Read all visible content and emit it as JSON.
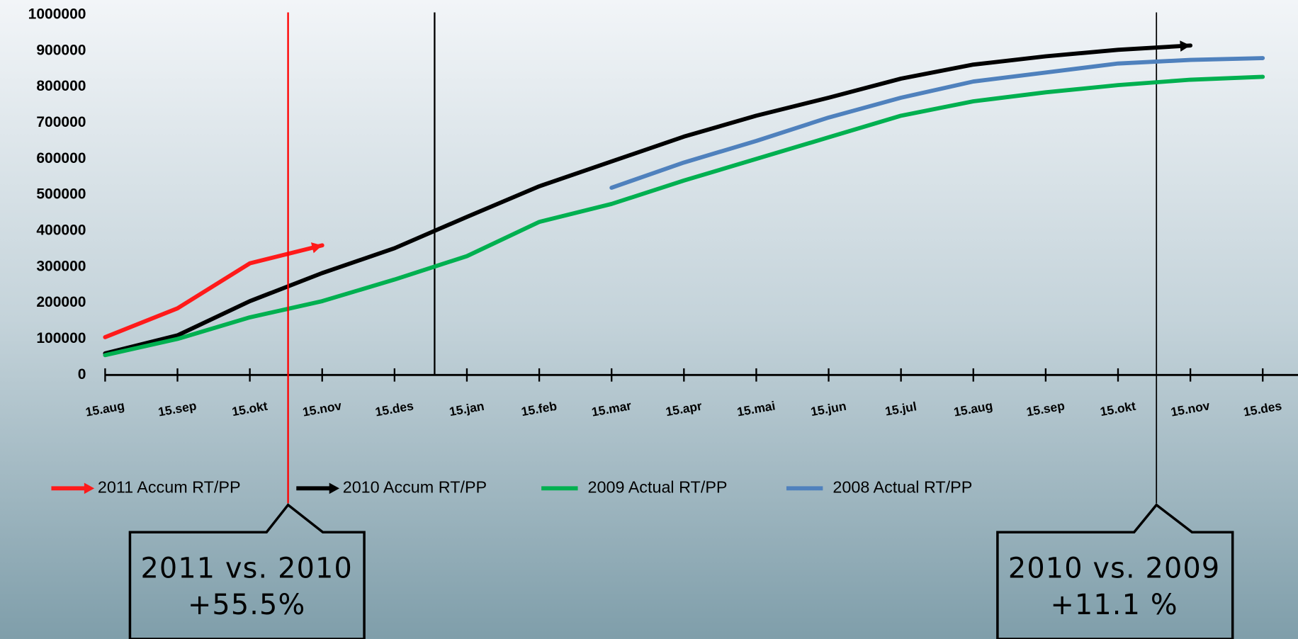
{
  "chart_data": {
    "type": "line",
    "categories": [
      "15.aug",
      "15.sep",
      "15.okt",
      "15.nov",
      "15.des",
      "15.jan",
      "15.feb",
      "15.mar",
      "15.apr",
      "15.mai",
      "15.jun",
      "15.jul",
      "15.aug",
      "15.sep",
      "15.okt",
      "15.nov",
      "15.des"
    ],
    "series": [
      {
        "name": "2011 Accum RT/PP",
        "color": "#ff1a1a",
        "values": [
          105000,
          185000,
          310000,
          360000,
          null,
          null,
          null,
          null,
          null,
          null,
          null,
          null,
          null,
          null,
          null,
          null,
          null
        ]
      },
      {
        "name": "2010 Accum RT/PP",
        "color": "#000000",
        "values": [
          60000,
          110000,
          205000,
          283000,
          352000,
          439000,
          524000,
          593000,
          662000,
          720000,
          770000,
          823000,
          862000,
          885000,
          903000,
          915000,
          null
        ]
      },
      {
        "name": "2009 Actual RT/PP",
        "color": "#00b050",
        "values": [
          55000,
          100000,
          160000,
          205000,
          265000,
          330000,
          425000,
          475000,
          540000,
          600000,
          660000,
          720000,
          760000,
          785000,
          805000,
          820000,
          828000
        ]
      },
      {
        "name": "2008 Actual RT/PP",
        "color": "#4f81bd",
        "values": [
          null,
          null,
          null,
          null,
          null,
          null,
          null,
          520000,
          590000,
          650000,
          715000,
          770000,
          815000,
          840000,
          865000,
          875000,
          880000
        ]
      }
    ],
    "ylim": [
      0,
      1000000
    ],
    "yticks": [
      0,
      100000,
      200000,
      300000,
      400000,
      500000,
      600000,
      700000,
      800000,
      900000,
      1000000
    ],
    "annotations": [
      {
        "line1": "2011 vs. 2010",
        "line2": "+55.5%"
      },
      {
        "line1": "2010 vs. 2009",
        "line2": "+11.1 %"
      }
    ]
  }
}
